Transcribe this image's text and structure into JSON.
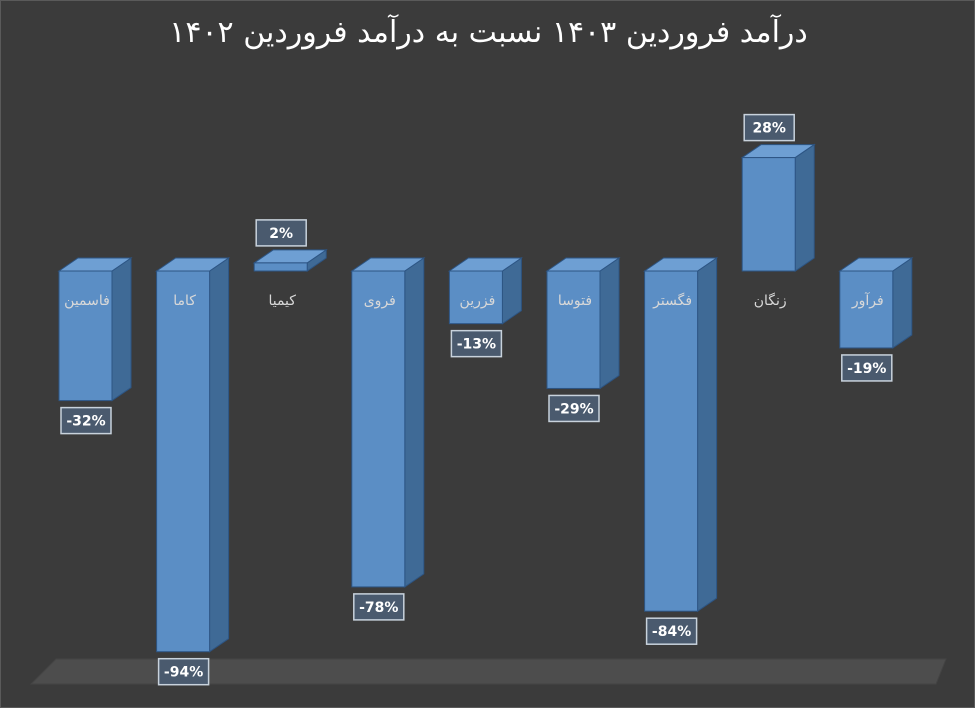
{
  "chart_data": {
    "type": "bar",
    "title": "درآمد فروردین ۱۴۰۳ نسبت به درآمد فروردین ۱۴۰۲",
    "categories": [
      "فاسمین",
      "کاما",
      "کیمیا",
      "فروی",
      "فزرین",
      "فتوسا",
      "فگستر",
      "زنگان",
      "فرآور"
    ],
    "values": [
      -32,
      -94,
      2,
      -78,
      -13,
      -29,
      -84,
      28,
      -19
    ],
    "value_labels": [
      "-32%",
      "-94%",
      "2%",
      "-78%",
      "-13%",
      "-29%",
      "-84%",
      "28%",
      "-19%"
    ],
    "unit": "%",
    "ylim": [
      -100,
      30
    ],
    "grid": false,
    "legend": "none",
    "colors": {
      "background": "#3b3b3b",
      "bar_front": "#5b8ec5",
      "bar_side": "#3f6a96",
      "bar_top": "#6e9fd3",
      "bar_edge": "#2d5584",
      "floor": "#4d4d4d",
      "label_box": "#4a5a6e",
      "label_border": "#c8d2dc",
      "text": "#ffffff",
      "category_text": "#d8d8d8"
    }
  }
}
